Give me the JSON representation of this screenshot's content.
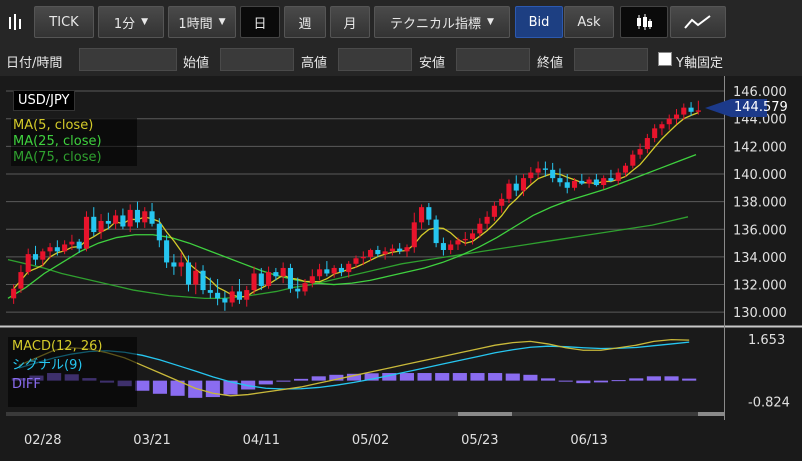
{
  "toolbar": {
    "buttons": [
      {
        "id": "tick",
        "label": "TICK"
      },
      {
        "id": "minute",
        "label": "1分"
      },
      {
        "id": "hour",
        "label": "1時間"
      },
      {
        "id": "day",
        "label": "日"
      },
      {
        "id": "week",
        "label": "週"
      },
      {
        "id": "month",
        "label": "月"
      },
      {
        "id": "technical",
        "label": "テクニカル指標"
      },
      {
        "id": "bid",
        "label": "Bid"
      },
      {
        "id": "ask",
        "label": "Ask"
      }
    ],
    "active_period": "日",
    "active_side": "Bid",
    "icons": [
      "bar-chart-icon",
      "candle-chart-icon",
      "line-chart-icon"
    ]
  },
  "fields": {
    "datetime_label": "日付/時間",
    "open_label": "始値",
    "high_label": "高値",
    "low_label": "安値",
    "close_label": "終値",
    "y_fixed_label": "Y軸固定"
  },
  "chart": {
    "symbol": "USD/JPY",
    "current_price": "144.579",
    "ma_legend": [
      "MA(5, close)",
      "MA(25, close)",
      "MA(75, close)"
    ],
    "macd_legend": [
      "MACD(12, 26)",
      "シグナル(9)",
      "DIFF"
    ],
    "colors": {
      "bull": "#e8142c",
      "bear": "#26c6f0",
      "ma5": "#d4cb2a",
      "ma25": "#3fd13f",
      "ma75": "#2fa02f",
      "macd": "#c9b93a",
      "signal": "#26c6f0",
      "diff": "#8a6cf0",
      "price_tag": "#1c3a8a"
    }
  },
  "chart_data": {
    "type": "candlestick",
    "price_axis": {
      "ticks": [
        "146.000",
        "144.000",
        "142.000",
        "140.000",
        "138.000",
        "136.000",
        "134.000",
        "132.000",
        "130.000"
      ],
      "ylim": [
        129.0,
        146.8
      ]
    },
    "x_ticks": [
      "02/28",
      "03/21",
      "04/11",
      "05/02",
      "05/23",
      "06/13"
    ],
    "x_tick_positions": [
      4,
      19,
      34,
      49,
      64,
      79
    ],
    "candles": [
      [
        131.0,
        132.0,
        130.6,
        131.7
      ],
      [
        131.7,
        133.4,
        131.4,
        132.9
      ],
      [
        132.9,
        134.6,
        132.7,
        134.2
      ],
      [
        134.2,
        134.8,
        133.4,
        133.8
      ],
      [
        133.8,
        134.6,
        133.3,
        134.4
      ],
      [
        134.4,
        135.0,
        133.9,
        134.7
      ],
      [
        134.7,
        135.2,
        134.1,
        134.4
      ],
      [
        134.4,
        135.2,
        134.2,
        134.9
      ],
      [
        134.9,
        135.6,
        134.5,
        135.1
      ],
      [
        135.1,
        135.3,
        134.3,
        134.6
      ],
      [
        134.6,
        137.3,
        134.4,
        136.9
      ],
      [
        136.9,
        137.6,
        135.5,
        135.8
      ],
      [
        135.8,
        137.1,
        135.3,
        136.6
      ],
      [
        136.6,
        137.2,
        136.0,
        136.4
      ],
      [
        136.4,
        137.4,
        136.0,
        137.0
      ],
      [
        137.0,
        137.5,
        136.0,
        136.2
      ],
      [
        136.2,
        137.8,
        135.8,
        137.4
      ],
      [
        137.4,
        138.0,
        136.1,
        136.5
      ],
      [
        136.5,
        137.6,
        136.1,
        137.3
      ],
      [
        137.3,
        137.9,
        136.2,
        136.4
      ],
      [
        136.4,
        136.8,
        134.7,
        135.2
      ],
      [
        135.2,
        135.6,
        133.2,
        133.6
      ],
      [
        133.6,
        134.2,
        132.7,
        133.3
      ],
      [
        133.3,
        134.3,
        132.6,
        133.6
      ],
      [
        133.6,
        134.1,
        131.5,
        132.0
      ],
      [
        132.0,
        133.6,
        131.3,
        133.0
      ],
      [
        133.0,
        133.4,
        131.3,
        131.6
      ],
      [
        131.6,
        132.5,
        131.0,
        131.4
      ],
      [
        131.4,
        132.4,
        130.5,
        131.0
      ],
      [
        131.0,
        131.5,
        130.1,
        130.7
      ],
      [
        130.7,
        131.9,
        130.4,
        131.5
      ],
      [
        131.5,
        132.4,
        130.6,
        130.9
      ],
      [
        130.9,
        131.9,
        130.4,
        131.6
      ],
      [
        131.6,
        133.3,
        131.3,
        132.8
      ],
      [
        132.8,
        133.2,
        131.6,
        131.9
      ],
      [
        131.9,
        133.3,
        131.7,
        132.9
      ],
      [
        132.9,
        133.2,
        132.3,
        132.6
      ],
      [
        132.6,
        133.6,
        132.1,
        133.2
      ],
      [
        133.2,
        133.5,
        131.4,
        131.7
      ],
      [
        131.7,
        132.5,
        131.0,
        131.5
      ],
      [
        131.5,
        132.4,
        131.2,
        132.1
      ],
      [
        132.1,
        133.1,
        131.8,
        132.6
      ],
      [
        132.6,
        133.5,
        132.3,
        133.1
      ],
      [
        133.1,
        133.7,
        132.6,
        132.8
      ],
      [
        132.8,
        133.4,
        132.5,
        133.2
      ],
      [
        133.2,
        133.5,
        132.6,
        132.9
      ],
      [
        132.9,
        133.7,
        132.5,
        133.5
      ],
      [
        133.5,
        134.1,
        133.2,
        133.9
      ],
      [
        133.9,
        134.4,
        133.4,
        134.0
      ],
      [
        134.0,
        134.6,
        133.7,
        134.5
      ],
      [
        134.5,
        134.8,
        134.0,
        134.2
      ],
      [
        134.2,
        134.7,
        133.8,
        134.4
      ],
      [
        134.4,
        134.9,
        134.1,
        134.6
      ],
      [
        134.6,
        135.0,
        134.2,
        134.4
      ],
      [
        134.4,
        134.9,
        134.0,
        134.7
      ],
      [
        134.7,
        137.2,
        134.3,
        136.5
      ],
      [
        136.5,
        137.8,
        136.0,
        137.6
      ],
      [
        137.6,
        137.9,
        136.3,
        136.7
      ],
      [
        136.7,
        137.0,
        134.7,
        135.0
      ],
      [
        135.0,
        135.4,
        134.1,
        134.5
      ],
      [
        134.5,
        135.2,
        134.2,
        134.9
      ],
      [
        134.9,
        135.4,
        134.5,
        135.2
      ],
      [
        135.2,
        135.8,
        134.8,
        135.3
      ],
      [
        135.3,
        136.0,
        134.9,
        135.7
      ],
      [
        135.7,
        136.8,
        135.4,
        136.4
      ],
      [
        136.4,
        137.3,
        136.0,
        136.9
      ],
      [
        136.9,
        138.0,
        136.6,
        137.7
      ],
      [
        137.7,
        138.6,
        137.2,
        138.2
      ],
      [
        138.2,
        139.6,
        137.9,
        139.3
      ],
      [
        139.3,
        139.9,
        138.4,
        138.8
      ],
      [
        138.8,
        140.0,
        138.4,
        139.7
      ],
      [
        139.7,
        140.5,
        139.3,
        140.1
      ],
      [
        140.1,
        140.9,
        139.7,
        140.4
      ],
      [
        140.4,
        140.9,
        139.8,
        140.3
      ],
      [
        140.3,
        140.8,
        139.4,
        139.7
      ],
      [
        139.7,
        140.4,
        139.1,
        139.4
      ],
      [
        139.4,
        140.0,
        138.6,
        139.0
      ],
      [
        139.0,
        139.7,
        138.8,
        139.5
      ],
      [
        139.5,
        140.0,
        139.2,
        139.3
      ],
      [
        139.3,
        139.8,
        139.0,
        139.6
      ],
      [
        139.6,
        140.0,
        139.1,
        139.2
      ],
      [
        139.2,
        139.9,
        138.9,
        139.7
      ],
      [
        139.7,
        140.3,
        139.4,
        139.5
      ],
      [
        139.5,
        140.4,
        139.2,
        140.1
      ],
      [
        140.1,
        140.8,
        139.8,
        140.6
      ],
      [
        140.6,
        141.7,
        140.4,
        141.4
      ],
      [
        141.4,
        142.2,
        141.1,
        141.8
      ],
      [
        141.8,
        142.9,
        141.5,
        142.6
      ],
      [
        142.6,
        143.6,
        142.3,
        143.3
      ],
      [
        143.3,
        143.8,
        142.8,
        143.6
      ],
      [
        143.6,
        144.3,
        143.2,
        144.0
      ],
      [
        144.0,
        144.7,
        143.6,
        144.3
      ],
      [
        144.3,
        145.1,
        143.9,
        144.8
      ],
      [
        144.8,
        145.2,
        144.2,
        144.5
      ],
      [
        144.5,
        145.3,
        144.3,
        144.6
      ]
    ],
    "ma75": [
      133.8,
      133.5,
      133.2,
      132.8,
      132.5,
      132.2,
      131.9,
      131.6,
      131.4,
      131.2,
      131.1,
      131.0,
      131.0,
      131.1,
      131.3,
      131.5,
      131.8,
      132.0,
      132.3,
      132.6,
      132.9,
      133.2,
      133.5,
      133.7,
      133.9,
      134.1,
      134.3,
      134.5,
      134.7,
      134.9,
      135.1,
      135.3,
      135.5,
      135.7,
      135.9,
      136.1,
      136.3,
      136.6,
      136.9
    ],
    "ma25": [
      131.0,
      131.8,
      132.8,
      133.6,
      134.4,
      135.0,
      135.4,
      135.6,
      135.6,
      135.4,
      135.0,
      134.5,
      134.0,
      133.5,
      133.0,
      132.6,
      132.3,
      132.1,
      132.0,
      132.1,
      132.3,
      132.6,
      132.9,
      133.2,
      133.6,
      134.1,
      134.7,
      135.4,
      136.2,
      137.0,
      137.6,
      138.1,
      138.5,
      138.9,
      139.4,
      139.9,
      140.4,
      140.9,
      141.4
    ],
    "macd_axis": {
      "ticks": [
        "1.653",
        "-0.824"
      ],
      "ylim": [
        -1.2,
        2.0
      ]
    },
    "macd": [
      0.6,
      0.9,
      1.2,
      1.3,
      1.25,
      1.1,
      0.9,
      0.6,
      0.3,
      0.0,
      -0.3,
      -0.5,
      -0.6,
      -0.55,
      -0.45,
      -0.35,
      -0.25,
      -0.1,
      0.05,
      0.2,
      0.35,
      0.5,
      0.65,
      0.8,
      0.95,
      1.1,
      1.25,
      1.4,
      1.5,
      1.55,
      1.45,
      1.3,
      1.2,
      1.2,
      1.3,
      1.4,
      1.55,
      1.62,
      1.6
    ],
    "signal": [
      0.5,
      0.7,
      0.9,
      1.05,
      1.15,
      1.18,
      1.12,
      1.0,
      0.82,
      0.6,
      0.38,
      0.15,
      -0.05,
      -0.2,
      -0.3,
      -0.33,
      -0.32,
      -0.27,
      -0.18,
      -0.07,
      0.06,
      0.2,
      0.35,
      0.5,
      0.65,
      0.8,
      0.95,
      1.1,
      1.22,
      1.32,
      1.36,
      1.34,
      1.3,
      1.27,
      1.28,
      1.31,
      1.38,
      1.45,
      1.52
    ],
    "diff": [
      0.1,
      0.2,
      0.3,
      0.25,
      0.1,
      -0.08,
      -0.22,
      -0.4,
      -0.52,
      -0.6,
      -0.68,
      -0.65,
      -0.55,
      -0.35,
      -0.15,
      -0.02,
      0.07,
      0.17,
      0.23,
      0.27,
      0.29,
      0.3,
      0.3,
      0.3,
      0.3,
      0.3,
      0.3,
      0.3,
      0.28,
      0.23,
      0.09,
      -0.04,
      -0.1,
      -0.07,
      0.02,
      0.09,
      0.17,
      0.17,
      0.08
    ]
  }
}
